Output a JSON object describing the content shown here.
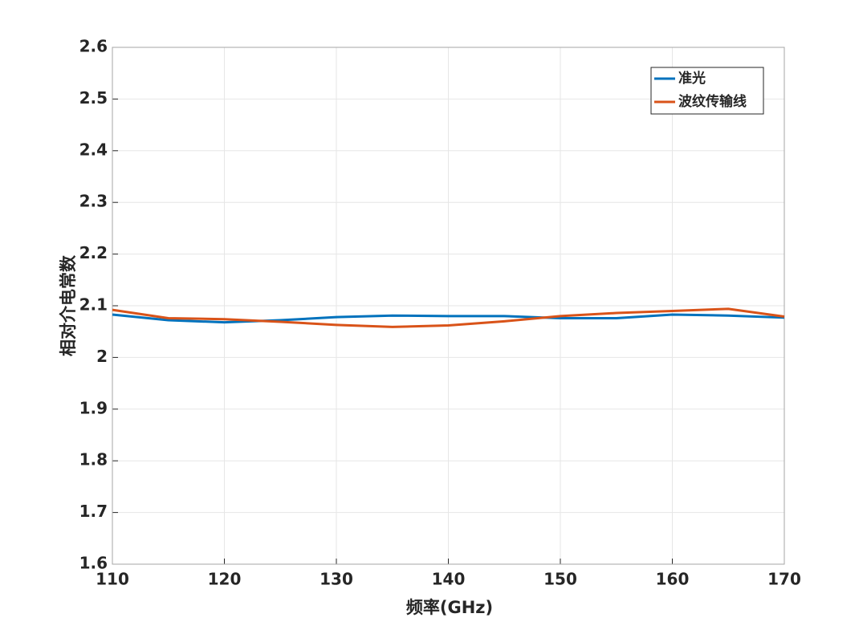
{
  "chart_data": {
    "type": "line",
    "xlabel": "频率(GHz)",
    "ylabel": "相对介电常数",
    "x": [
      110,
      115,
      120,
      125,
      130,
      135,
      140,
      145,
      150,
      155,
      160,
      165,
      170
    ],
    "series": [
      {
        "name": "准光",
        "color": "#0072bd",
        "values": [
          2.083,
          2.072,
          2.068,
          2.072,
          2.078,
          2.081,
          2.08,
          2.08,
          2.076,
          2.076,
          2.083,
          2.081,
          2.077
        ]
      },
      {
        "name": "波纹传输线",
        "color": "#d95319",
        "values": [
          2.092,
          2.076,
          2.074,
          2.069,
          2.063,
          2.059,
          2.062,
          2.07,
          2.08,
          2.086,
          2.09,
          2.094,
          2.079
        ]
      }
    ],
    "xlim": [
      110,
      170
    ],
    "xticks": [
      110,
      120,
      130,
      140,
      150,
      160,
      170
    ],
    "ylim": [
      1.6,
      2.6
    ],
    "yticks": [
      1.6,
      1.7,
      1.8,
      1.9,
      2,
      2.1,
      2.2,
      2.3,
      2.4,
      2.5,
      2.6
    ],
    "grid": true,
    "legend": "upper right"
  }
}
